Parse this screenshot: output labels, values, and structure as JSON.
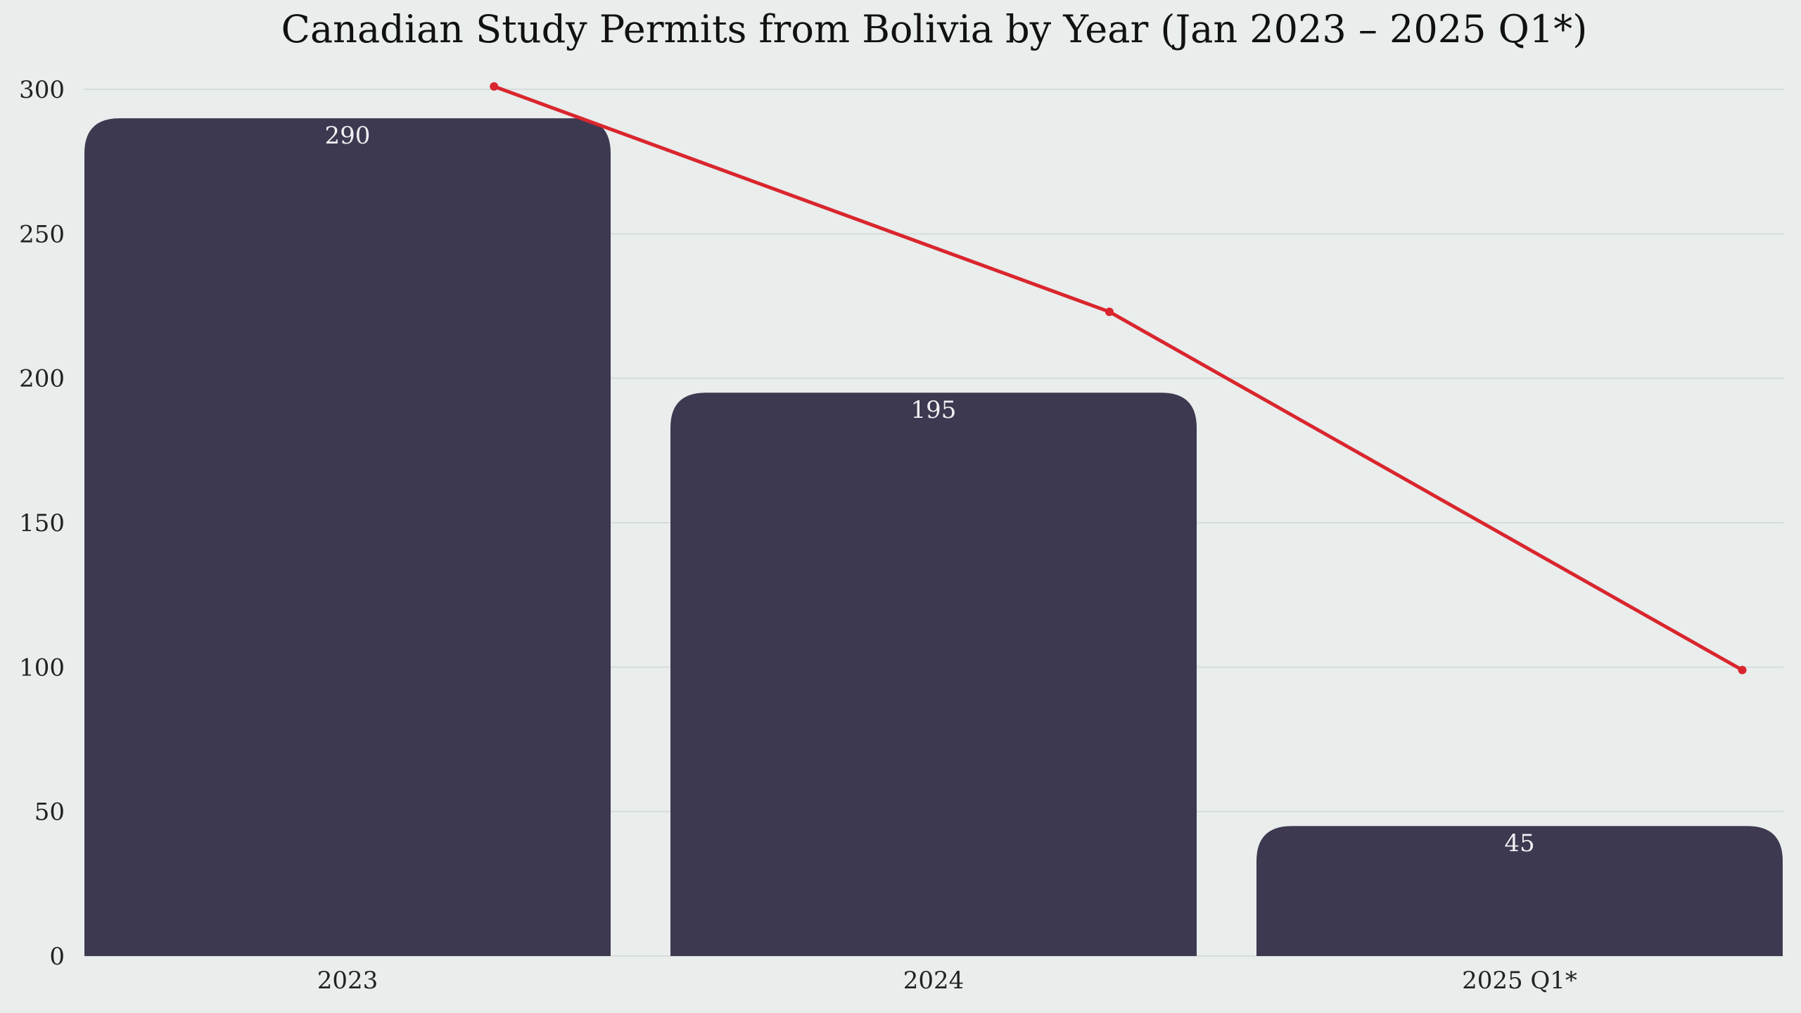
{
  "chart_data": {
    "type": "bar",
    "title": "Canadian Study Permits from Bolivia by Year (Jan 2023 – 2025 Q1*)",
    "categories": [
      "2023",
      "2024",
      "2025 Q1*"
    ],
    "values": [
      290,
      195,
      45
    ],
    "data_labels": [
      "290",
      "195",
      "45"
    ],
    "ylim": [
      0,
      300
    ],
    "yticks": [
      0,
      50,
      100,
      150,
      200,
      250,
      300
    ],
    "grid": true,
    "overlay_line": {
      "type": "line",
      "points": [
        {
          "x": 0.25,
          "y": 301
        },
        {
          "x": 1.3,
          "y": 223
        },
        {
          "x": 2.38,
          "y": 99
        }
      ]
    },
    "colors": {
      "bar": "#3d3950",
      "line": "#d9262e",
      "background": "#e9edec"
    }
  }
}
